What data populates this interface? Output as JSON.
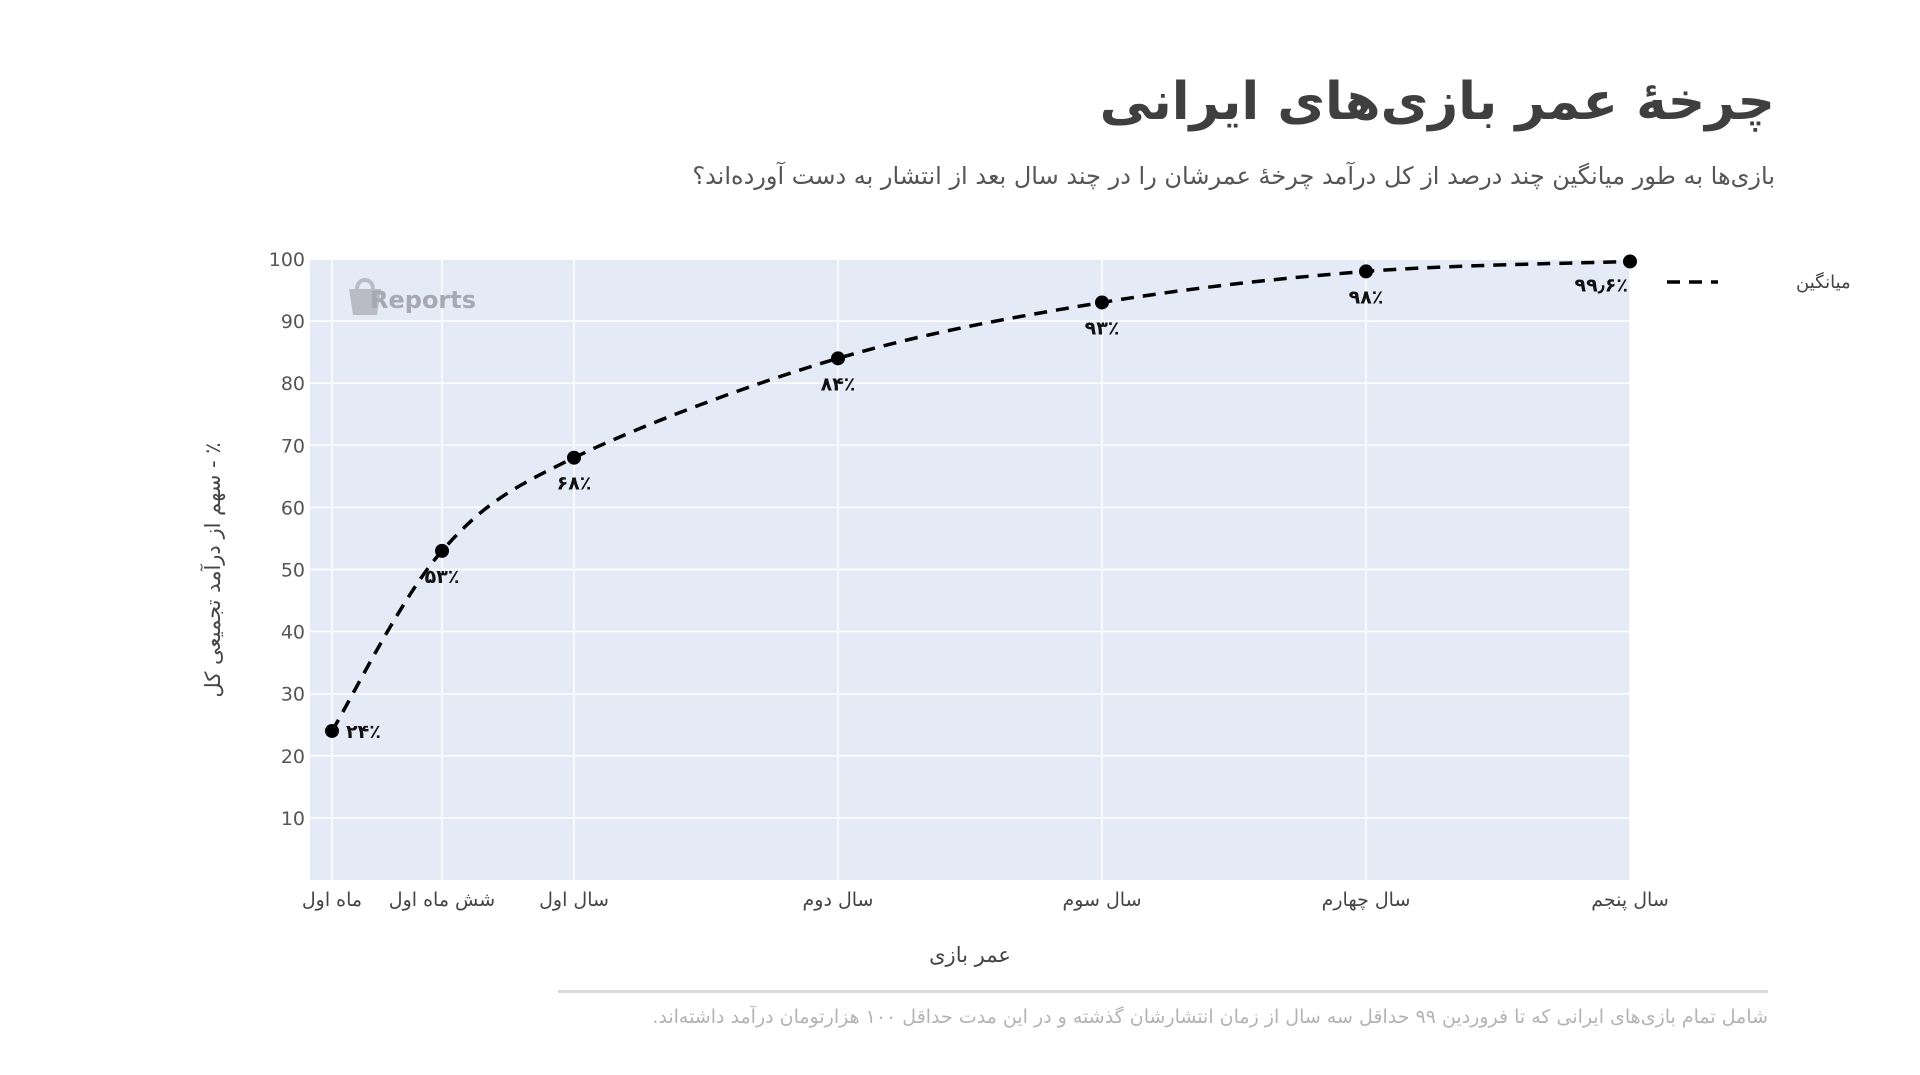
{
  "chart_data": {
    "type": "line",
    "title": "چرخهٔ عمر بازی‌های ایرانی",
    "subtitle": "بازی‌ها به طور میانگین چند درصد از کل درآمد چرخهٔ عمرشان را در چند سال بعد از انتشار به دست آورده‌اند؟",
    "xlabel": "عمر بازی",
    "ylabel": "٪ - سهم از درآمد تجمیعی کل",
    "categories": [
      "ماه اول",
      "شش ماه اول",
      "سال اول",
      "سال دوم",
      "سال سوم",
      "سال چهارم",
      "سال پنجم"
    ],
    "x_months": [
      1,
      6,
      12,
      24,
      36,
      48,
      60
    ],
    "series": [
      {
        "name": "میانگین",
        "values": [
          24,
          53,
          68,
          84,
          93,
          98,
          99.6
        ],
        "data_labels": [
          "۲۴٪",
          "۵۳٪",
          "۶۸٪",
          "۸۴٪",
          "۹۳٪",
          "۹۸٪",
          "۹۹٫۶٪"
        ],
        "line_style": "dashed",
        "color": "#000000"
      }
    ],
    "yticks": [
      10,
      20,
      30,
      40,
      50,
      60,
      70,
      80,
      90,
      100
    ],
    "ylim": [
      0,
      100
    ],
    "grid": true,
    "legend_position": "right",
    "plot_background": "#e5ebf6"
  },
  "watermark": "Reports",
  "footnote": "شامل تمام بازی‌های ایرانی که تا فروردین ۹۹ حداقل سه سال از زمان انتشارشان گذشته و در این مدت حداقل ۱۰۰ هزارتومان درآمد داشته‌اند."
}
